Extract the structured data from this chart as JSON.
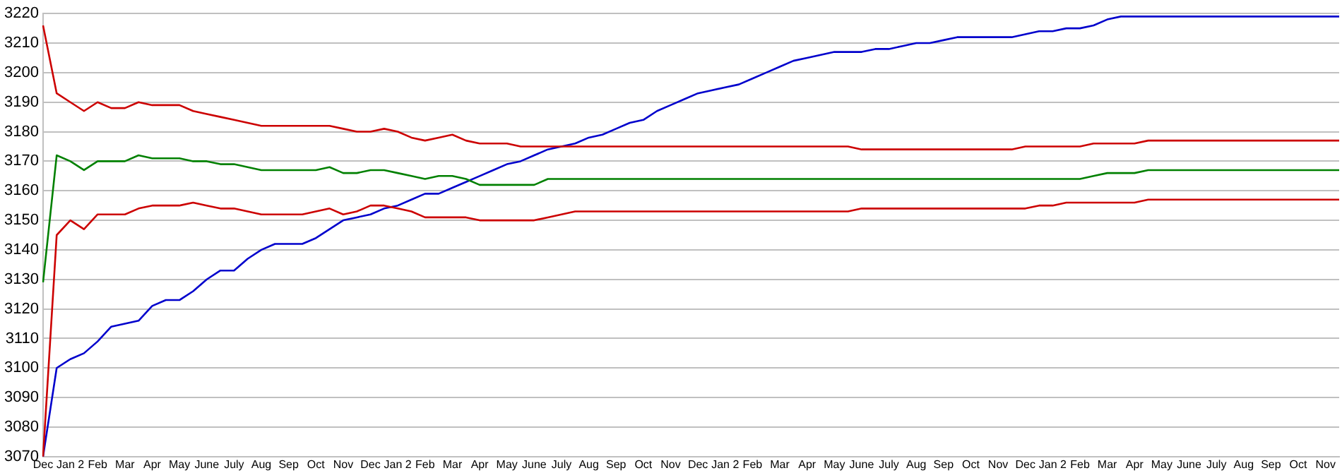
{
  "chart_data": {
    "type": "line",
    "categories": [
      "Dec",
      null,
      "Jan 2",
      null,
      "Feb",
      null,
      "Mar",
      null,
      "Apr",
      null,
      "May",
      null,
      "June",
      null,
      "July",
      null,
      "Aug",
      null,
      "Sep",
      null,
      "Oct",
      null,
      "Nov",
      null,
      "Dec",
      null,
      "Jan 2",
      null,
      "Feb",
      null,
      "Mar",
      null,
      "Apr",
      null,
      "May",
      null,
      "June",
      null,
      "July",
      null,
      "Aug",
      null,
      "Sep",
      null,
      "Oct",
      null,
      "Nov",
      null,
      "Dec",
      null,
      "Jan 2",
      null,
      "Feb",
      null,
      "Mar",
      null,
      "Apr",
      null,
      "May",
      null,
      "June",
      null,
      "July",
      null,
      "Aug",
      null,
      "Sep",
      null,
      "Oct",
      null,
      "Nov",
      null,
      "Dec",
      null,
      "Jan 2",
      null,
      "Feb",
      null,
      "Mar",
      null,
      "Apr",
      null,
      "May",
      null,
      "June",
      null,
      "July",
      null,
      "Aug",
      null,
      "Sep",
      null,
      "Oct",
      null,
      "Nov",
      null
    ],
    "series": [
      {
        "color": "#cc0000",
        "values": [
          3216,
          3193,
          3190,
          3187,
          3190,
          3188,
          3188,
          3190,
          3189,
          3189,
          3189,
          3187,
          3186,
          3185,
          3184,
          3183,
          3182,
          3182,
          3182,
          3182,
          3182,
          3182,
          3181,
          3180,
          3180,
          3181,
          3180,
          3178,
          3177,
          3178,
          3179,
          3177,
          3176,
          3176,
          3176,
          3175,
          3175,
          3175,
          3175,
          3175,
          3175,
          3175,
          3175,
          3175,
          3175,
          3175,
          3175,
          3175,
          3175,
          3175,
          3175,
          3175,
          3175,
          3175,
          3175,
          3175,
          3175,
          3175,
          3175,
          3175,
          3174,
          3174,
          3174,
          3174,
          3174,
          3174,
          3174,
          3174,
          3174,
          3174,
          3174,
          3174,
          3175,
          3175,
          3175,
          3175,
          3175,
          3176,
          3176,
          3176,
          3176,
          3177,
          3177,
          3177,
          3177,
          3177,
          3177,
          3177,
          3177,
          3177,
          3177,
          3177,
          3177,
          3177,
          3177,
          3177
        ]
      },
      {
        "color": "#008000",
        "values": [
          3129,
          3172,
          3170,
          3167,
          3170,
          3170,
          3170,
          3172,
          3171,
          3171,
          3171,
          3170,
          3170,
          3169,
          3169,
          3168,
          3167,
          3167,
          3167,
          3167,
          3167,
          3168,
          3166,
          3166,
          3167,
          3167,
          3166,
          3165,
          3164,
          3165,
          3165,
          3164,
          3162,
          3162,
          3162,
          3162,
          3162,
          3164,
          3164,
          3164,
          3164,
          3164,
          3164,
          3164,
          3164,
          3164,
          3164,
          3164,
          3164,
          3164,
          3164,
          3164,
          3164,
          3164,
          3164,
          3164,
          3164,
          3164,
          3164,
          3164,
          3164,
          3164,
          3164,
          3164,
          3164,
          3164,
          3164,
          3164,
          3164,
          3164,
          3164,
          3164,
          3164,
          3164,
          3164,
          3164,
          3164,
          3165,
          3166,
          3166,
          3166,
          3167,
          3167,
          3167,
          3167,
          3167,
          3167,
          3167,
          3167,
          3167,
          3167,
          3167,
          3167,
          3167,
          3167,
          3167
        ]
      },
      {
        "color": "#cc0000",
        "values": [
          3070,
          3145,
          3150,
          3147,
          3152,
          3152,
          3152,
          3154,
          3155,
          3155,
          3155,
          3156,
          3155,
          3154,
          3154,
          3153,
          3152,
          3152,
          3152,
          3152,
          3153,
          3154,
          3152,
          3153,
          3155,
          3155,
          3154,
          3153,
          3151,
          3151,
          3151,
          3151,
          3150,
          3150,
          3150,
          3150,
          3150,
          3151,
          3152,
          3153,
          3153,
          3153,
          3153,
          3153,
          3153,
          3153,
          3153,
          3153,
          3153,
          3153,
          3153,
          3153,
          3153,
          3153,
          3153,
          3153,
          3153,
          3153,
          3153,
          3153,
          3154,
          3154,
          3154,
          3154,
          3154,
          3154,
          3154,
          3154,
          3154,
          3154,
          3154,
          3154,
          3154,
          3155,
          3155,
          3156,
          3156,
          3156,
          3156,
          3156,
          3156,
          3157,
          3157,
          3157,
          3157,
          3157,
          3157,
          3157,
          3157,
          3157,
          3157,
          3157,
          3157,
          3157,
          3157,
          3157
        ]
      },
      {
        "color": "#0000cc",
        "values": [
          3070,
          3100,
          3103,
          3105,
          3109,
          3114,
          3115,
          3116,
          3121,
          3123,
          3123,
          3126,
          3130,
          3133,
          3133,
          3137,
          3140,
          3142,
          3142,
          3142,
          3144,
          3147,
          3150,
          3151,
          3152,
          3154,
          3155,
          3157,
          3159,
          3159,
          3161,
          3163,
          3165,
          3167,
          3169,
          3170,
          3172,
          3174,
          3175,
          3176,
          3178,
          3179,
          3181,
          3183,
          3184,
          3187,
          3189,
          3191,
          3193,
          3194,
          3195,
          3196,
          3198,
          3200,
          3202,
          3204,
          3205,
          3206,
          3207,
          3207,
          3207,
          3208,
          3208,
          3209,
          3210,
          3210,
          3211,
          3212,
          3212,
          3212,
          3212,
          3212,
          3213,
          3214,
          3214,
          3215,
          3215,
          3216,
          3218,
          3219,
          3219,
          3219,
          3219,
          3219,
          3219,
          3219,
          3219,
          3219,
          3219,
          3219,
          3219,
          3219,
          3219,
          3219,
          3219,
          3219
        ]
      }
    ],
    "ylim": [
      3070,
      3220
    ],
    "yticks": [
      3070,
      3080,
      3090,
      3100,
      3110,
      3120,
      3130,
      3140,
      3150,
      3160,
      3170,
      3180,
      3190,
      3200,
      3210,
      3220
    ],
    "grid": "y",
    "legend": false,
    "marker": "none",
    "line_style": "solid"
  }
}
